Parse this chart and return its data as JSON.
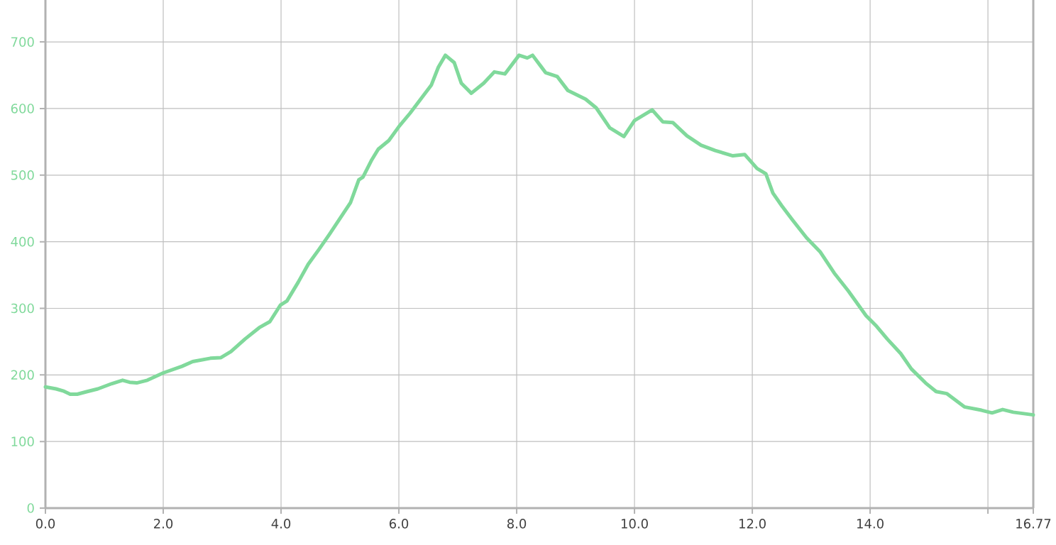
{
  "chart_data": {
    "type": "line",
    "x": [
      0,
      0.18,
      0.3,
      0.42,
      0.54,
      0.71,
      0.89,
      1.13,
      1.31,
      1.43,
      1.55,
      1.73,
      2.0,
      2.32,
      2.5,
      2.8,
      2.98,
      3.15,
      3.39,
      3.63,
      3.81,
      3.99,
      4.1,
      4.29,
      4.46,
      4.64,
      4.82,
      5.06,
      5.18,
      5.32,
      5.39,
      5.54,
      5.65,
      5.83,
      6.01,
      6.19,
      6.37,
      6.55,
      6.67,
      6.79,
      6.94,
      7.06,
      7.23,
      7.44,
      7.62,
      7.8,
      8.04,
      8.18,
      8.27,
      8.49,
      8.69,
      8.87,
      9.17,
      9.35,
      9.58,
      9.82,
      10.0,
      10.3,
      10.48,
      10.65,
      10.89,
      11.13,
      11.37,
      11.67,
      11.87,
      12.08,
      12.23,
      12.35,
      12.5,
      12.68,
      12.92,
      13.15,
      13.39,
      13.63,
      13.93,
      14.11,
      14.29,
      14.52,
      14.7,
      14.94,
      15.12,
      15.3,
      15.42,
      15.6,
      15.89,
      16.07,
      16.25,
      16.43,
      16.77
    ],
    "series": [
      {
        "color": "#80d99b",
        "values": [
          182,
          179,
          176,
          171,
          171,
          175,
          179,
          187,
          192,
          189,
          188,
          192,
          203,
          213,
          220,
          225,
          226,
          235,
          254,
          271,
          280,
          305,
          311,
          339,
          366,
          388,
          411,
          443,
          459,
          493,
          497,
          523,
          539,
          552,
          574,
          593,
          614,
          635,
          662,
          680,
          669,
          638,
          623,
          638,
          655,
          652,
          680,
          676,
          680,
          654,
          648,
          627,
          614,
          601,
          571,
          558,
          582,
          598,
          580,
          579,
          559,
          545,
          537,
          529,
          531,
          510,
          502,
          473,
          454,
          433,
          406,
          385,
          353,
          326,
          289,
          273,
          254,
          232,
          209,
          188,
          175,
          172,
          164,
          152,
          147,
          143,
          148,
          144,
          140
        ]
      }
    ],
    "xlim": [
      0,
      16.77
    ],
    "ylim": [
      0,
      763
    ],
    "xticks": [
      {
        "value": 0,
        "label": "0.0"
      },
      {
        "value": 2,
        "label": "2.0"
      },
      {
        "value": 4,
        "label": "4.0"
      },
      {
        "value": 6,
        "label": "6.0"
      },
      {
        "value": 8,
        "label": "8.0"
      },
      {
        "value": 10,
        "label": "10.0"
      },
      {
        "value": 12,
        "label": "12.0"
      },
      {
        "value": 14,
        "label": "14.0"
      },
      {
        "value": 16,
        "label": null
      },
      {
        "value": 16.77,
        "label": "16.77"
      }
    ],
    "yticks": [
      0,
      100,
      200,
      300,
      400,
      500,
      600,
      700
    ],
    "grid": true,
    "marker": "none",
    "line_style": "solid"
  }
}
